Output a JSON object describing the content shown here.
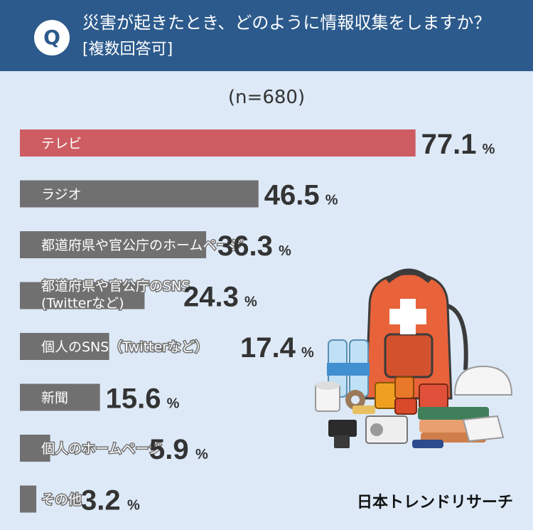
{
  "header": {
    "q_label": "Q",
    "title_line1": "災害が起きたとき、どのように情報収集をしますか？",
    "title_line2": "[複数回答可]"
  },
  "sample_size": "(n=680)",
  "percent_unit": "%",
  "brand": "日本トレンドリサーチ",
  "colors": {
    "header_bg": "#2c5a8c",
    "page_bg": "#dde9f7",
    "highlight_bar": "#cd5c63",
    "default_bar": "#707070",
    "value_text": "#333333"
  },
  "chart_data": {
    "type": "bar",
    "orientation": "horizontal",
    "categories": [
      [
        "テレビ"
      ],
      [
        "ラジオ"
      ],
      [
        "都道府県や官公庁のホームページ"
      ],
      [
        "都道府県や官公庁のSNS",
        "(Twitterなど)"
      ],
      [
        "個人のSNS（Twitterなど）"
      ],
      [
        "新聞"
      ],
      [
        "個人のホームページ"
      ],
      [
        "その他"
      ]
    ],
    "values": [
      77.1,
      46.5,
      36.3,
      24.3,
      17.4,
      15.6,
      5.9,
      3.2
    ],
    "value_labels": [
      "77.1",
      "46.5",
      "36.3",
      "24.3",
      "17.4",
      "15.6",
      "5.9",
      "3.2"
    ],
    "highlight_index": 0,
    "xlim": [
      0,
      100
    ]
  }
}
